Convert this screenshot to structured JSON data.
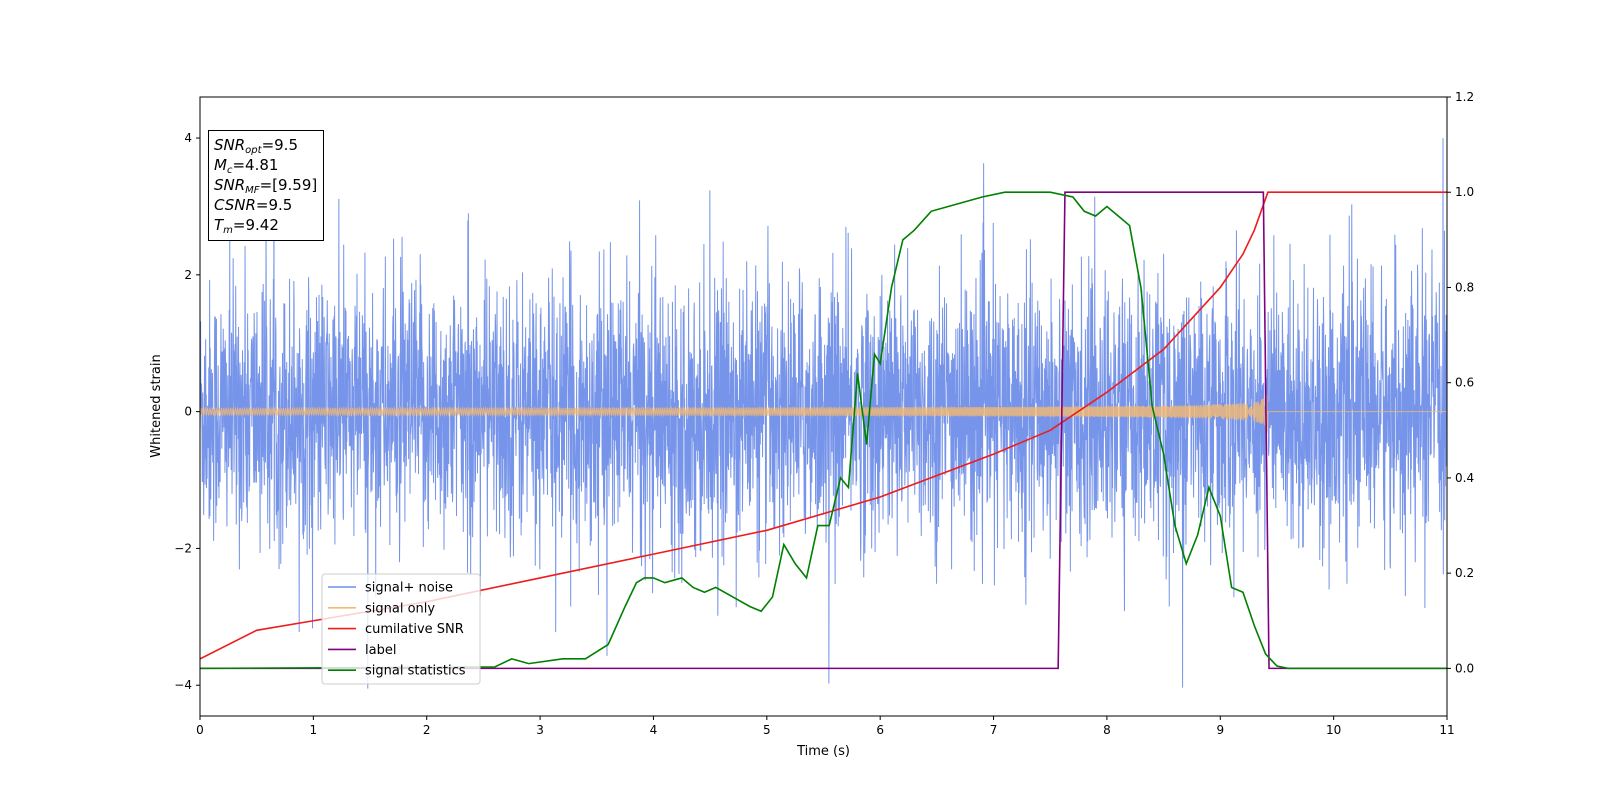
{
  "chart_data": {
    "type": "line",
    "xlabel": "Time (s)",
    "ylabel": "Whitened strain",
    "xlim": [
      0,
      11
    ],
    "ylim": [
      -4.45,
      4.6
    ],
    "y2lim": [
      -0.1,
      1.2
    ],
    "x_ticks": [
      "0",
      "1",
      "2",
      "3",
      "4",
      "5",
      "6",
      "7",
      "8",
      "9",
      "10",
      "11"
    ],
    "y_ticks": [
      "−4",
      "−2",
      "0",
      "2",
      "4"
    ],
    "y2_ticks": [
      "0.0",
      "0.2",
      "0.4",
      "0.6",
      "0.8",
      "1.0",
      "1.2"
    ],
    "annotation": {
      "snr_opt": {
        "sym": "SNR",
        "sub": "opt",
        "value": "=9.5"
      },
      "mc": {
        "sym": "M",
        "sub": "c",
        "value": "=4.81"
      },
      "snr_mf": {
        "sym": "SNR",
        "sub": "MF",
        "value": "=[9.59]"
      },
      "csnr": {
        "sym": "CSNR",
        "value": "=9.5"
      },
      "tm": {
        "sym": "T",
        "sub": "m",
        "value": "=9.42"
      }
    },
    "legend": {
      "position": "lower-left",
      "entries": [
        "signal+ noise",
        "signal only",
        "cumilative SNR",
        "label",
        "signal statistics"
      ]
    },
    "series": [
      {
        "name": "signal+ noise",
        "axis": "left",
        "color": "#6f8ee8",
        "description": "whitened noise, amplitude about ±1.5 with spikes to ±4"
      },
      {
        "name": "signal only",
        "axis": "left",
        "color": "#f5b971",
        "chirp": {
          "t_merge": 9.42,
          "amp_start": 0.05,
          "amp_end": 0.9
        }
      },
      {
        "name": "cumilative SNR",
        "axis": "right",
        "color": "#ee1c1c",
        "x": [
          0,
          0.5,
          1,
          2,
          3,
          4,
          5,
          6,
          7,
          7.5,
          8,
          8.5,
          9,
          9.2,
          9.3,
          9.42,
          11
        ],
        "y": [
          0.02,
          0.08,
          0.1,
          0.14,
          0.19,
          0.24,
          0.29,
          0.36,
          0.45,
          0.5,
          0.58,
          0.67,
          0.8,
          0.87,
          0.92,
          1.0,
          1.0
        ]
      },
      {
        "name": "label",
        "axis": "right",
        "color": "#800080",
        "x": [
          0,
          7.57,
          7.63,
          9.38,
          9.43,
          11
        ],
        "y": [
          0,
          0,
          1,
          1,
          0,
          0
        ]
      },
      {
        "name": "signal statistics",
        "axis": "right",
        "color": "#008000",
        "x": [
          0,
          2.6,
          2.75,
          2.9,
          3.2,
          3.4,
          3.6,
          3.75,
          3.85,
          3.92,
          4.0,
          4.1,
          4.25,
          4.35,
          4.45,
          4.55,
          4.7,
          4.85,
          4.95,
          5.05,
          5.15,
          5.25,
          5.35,
          5.45,
          5.55,
          5.65,
          5.72,
          5.8,
          5.88,
          5.95,
          6.0,
          6.1,
          6.2,
          6.3,
          6.45,
          6.6,
          6.75,
          6.9,
          7.1,
          7.3,
          7.5,
          7.7,
          7.8,
          7.9,
          8.0,
          8.1,
          8.2,
          8.3,
          8.4,
          8.5,
          8.6,
          8.7,
          8.8,
          8.9,
          9.0,
          9.1,
          9.2,
          9.3,
          9.4,
          9.5,
          9.6,
          10,
          11
        ],
        "y": [
          0,
          0.003,
          0.02,
          0.01,
          0.02,
          0.02,
          0.05,
          0.13,
          0.18,
          0.19,
          0.19,
          0.18,
          0.19,
          0.17,
          0.16,
          0.17,
          0.15,
          0.13,
          0.12,
          0.15,
          0.26,
          0.22,
          0.19,
          0.3,
          0.3,
          0.4,
          0.38,
          0.62,
          0.47,
          0.66,
          0.64,
          0.8,
          0.9,
          0.92,
          0.96,
          0.97,
          0.98,
          0.99,
          1.0,
          1.0,
          1.0,
          0.99,
          0.96,
          0.95,
          0.97,
          0.95,
          0.93,
          0.8,
          0.55,
          0.45,
          0.3,
          0.22,
          0.28,
          0.38,
          0.32,
          0.17,
          0.16,
          0.09,
          0.03,
          0.005,
          0,
          0,
          0
        ]
      }
    ]
  }
}
